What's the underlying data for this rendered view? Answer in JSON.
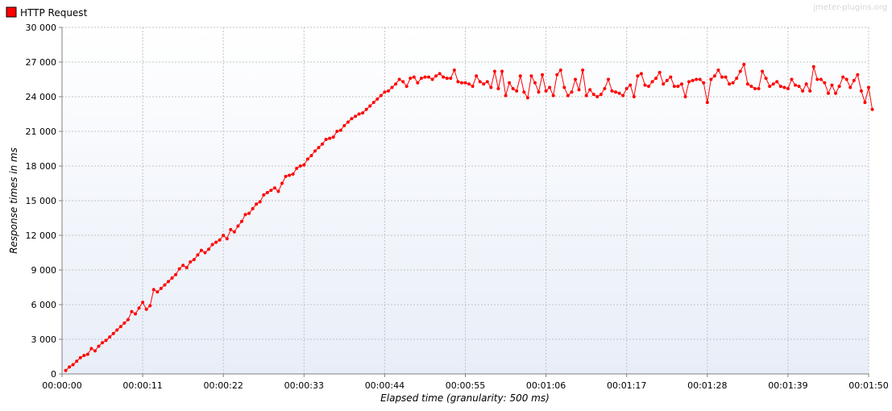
{
  "watermark": "jmeter-plugins.org",
  "colors": {
    "series": "#ff0000",
    "grid": "#c2c2c2",
    "plot_bg_top": "#ffffff",
    "plot_bg_bottom": "#e8eef8",
    "axis": "#808080"
  },
  "chart_data": {
    "type": "line",
    "xlabel": "Elapsed time (granularity: 500 ms)",
    "ylabel": "Response times in ms",
    "xlim": [
      0,
      110
    ],
    "ylim": [
      0,
      30000
    ],
    "x_tick_values": [
      0,
      11,
      22,
      33,
      44,
      55,
      66,
      77,
      88,
      99,
      110
    ],
    "x_tick_labels": [
      "00:00:00",
      "00:00:11",
      "00:00:22",
      "00:00:33",
      "00:00:44",
      "00:00:55",
      "00:01:06",
      "00:01:17",
      "00:01:28",
      "00:01:39",
      "00:01:50"
    ],
    "y_tick_values": [
      0,
      3000,
      6000,
      9000,
      12000,
      15000,
      18000,
      21000,
      24000,
      27000,
      30000
    ],
    "y_tick_labels": [
      "0",
      "3 000",
      "6 000",
      "9 000",
      "12 000",
      "15 000",
      "18 000",
      "21 000",
      "24 000",
      "27 000",
      "30 000"
    ],
    "grid": true,
    "legend_position": "top-left",
    "series": [
      {
        "name": "HTTP Request",
        "x_start": 0.5,
        "x_step": 0.5,
        "values": [
          300,
          600,
          800,
          1100,
          1400,
          1600,
          1700,
          2200,
          2000,
          2400,
          2700,
          2900,
          3200,
          3500,
          3800,
          4100,
          4400,
          4700,
          5400,
          5200,
          5700,
          6200,
          5600,
          5900,
          7300,
          7100,
          7400,
          7700,
          8000,
          8300,
          8600,
          9100,
          9400,
          9200,
          9700,
          9900,
          10300,
          10700,
          10500,
          10800,
          11200,
          11400,
          11600,
          12000,
          11700,
          12500,
          12300,
          12800,
          13200,
          13800,
          13900,
          14300,
          14700,
          14900,
          15500,
          15700,
          15900,
          16100,
          15800,
          16500,
          17100,
          17200,
          17300,
          17800,
          18000,
          18100,
          18600,
          18900,
          19300,
          19600,
          19900,
          20300,
          20400,
          20500,
          21000,
          21100,
          21500,
          21800,
          22100,
          22300,
          22500,
          22600,
          22900,
          23200,
          23500,
          23800,
          24100,
          24400,
          24500,
          24800,
          25100,
          25500,
          25300,
          24900,
          25600,
          25700,
          25200,
          25600,
          25700,
          25700,
          25500,
          25800,
          26000,
          25700,
          25600,
          25600,
          26300,
          25300,
          25200,
          25200,
          25100,
          24900,
          25800,
          25300,
          25100,
          25300,
          24800,
          26200,
          24700,
          26200,
          24100,
          25200,
          24700,
          24500,
          25800,
          24400,
          23900,
          25800,
          25200,
          24400,
          25900,
          24500,
          24800,
          24100,
          25900,
          26300,
          24800,
          24100,
          24400,
          25500,
          24600,
          26300,
          24100,
          24600,
          24200,
          24000,
          24200,
          24700,
          25500,
          24500,
          24400,
          24300,
          24100,
          24700,
          25000,
          24000,
          25800,
          26000,
          25000,
          24900,
          25300,
          25600,
          26100,
          25100,
          25400,
          25700,
          24900,
          24900,
          25100,
          24000,
          25300,
          25400,
          25500,
          25500,
          25200,
          23500,
          25500,
          25800,
          26300,
          25700,
          25700,
          25100,
          25200,
          25600,
          26200,
          26800,
          25100,
          24900,
          24700,
          24700,
          26200,
          25600,
          24900,
          25100,
          25300,
          24900,
          24800,
          24700,
          25500,
          25000,
          24900,
          24500,
          25100,
          24500,
          26600,
          25500,
          25500,
          25200,
          24300,
          25000,
          24300,
          24900,
          25700,
          25500,
          24800,
          25400,
          25900,
          24500,
          23500,
          24800,
          22900
        ]
      }
    ]
  }
}
